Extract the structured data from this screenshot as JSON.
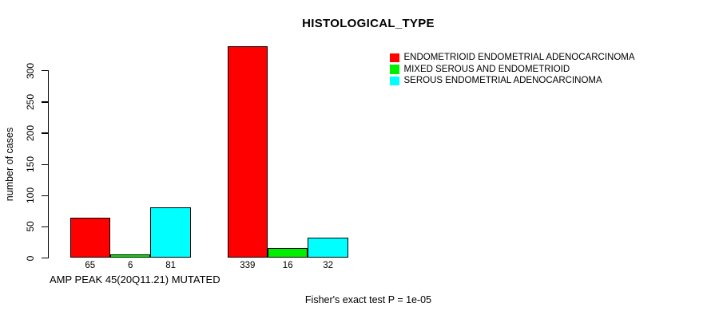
{
  "chart_data": {
    "type": "bar",
    "title": "HISTOLOGICAL_TYPE",
    "ylabel": "number of cases",
    "xlabel": "AMP PEAK 45(20Q11.21) MUTATED",
    "annotation": "Fisher's exact test P = 1e-05",
    "yticks": [
      0,
      50,
      100,
      150,
      200,
      250,
      300
    ],
    "ylim": [
      0,
      345
    ],
    "grid": false,
    "legend_position": "top-right",
    "bar_value_labels_shown": true,
    "series": [
      {
        "name": "ENDOMETRIOID ENDOMETRIAL ADENOCARCINOMA",
        "color": "#FF0000",
        "values": [
          65,
          339
        ]
      },
      {
        "name": "MIXED SEROUS AND ENDOMETRIOID",
        "color": "#00EE00",
        "values": [
          6,
          16
        ]
      },
      {
        "name": "SEROUS ENDOMETRIAL ADENOCARCINOMA",
        "color": "#00FFFF",
        "values": [
          81,
          32
        ]
      }
    ]
  }
}
